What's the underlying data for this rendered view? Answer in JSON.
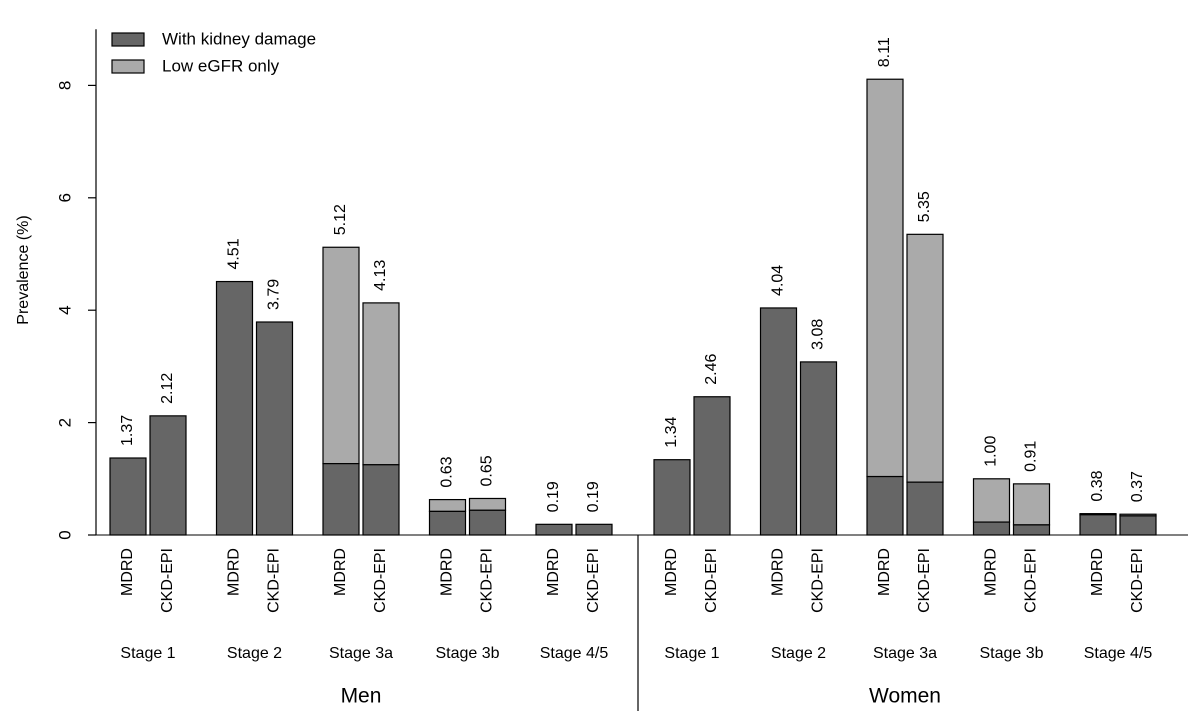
{
  "chart_data": {
    "type": "bar",
    "stacked": true,
    "ylabel": "Prevalence (%)",
    "ylim": [
      0,
      9
    ],
    "yticks": [
      0,
      2,
      4,
      6,
      8
    ],
    "legend": {
      "placement": "top-left",
      "entries": [
        {
          "label": "With kidney damage",
          "color": "#666666"
        },
        {
          "label": "Low eGFR only",
          "color": "#aaaaaa"
        }
      ]
    },
    "groups": [
      {
        "name": "Men",
        "stages": [
          {
            "name": "Stage 1",
            "bars": [
              {
                "method": "MDRD",
                "total": 1.37,
                "kidney_damage": 1.37,
                "total_label": "1.37"
              },
              {
                "method": "CKD-EPI",
                "total": 2.12,
                "kidney_damage": 2.12,
                "total_label": "2.12"
              }
            ]
          },
          {
            "name": "Stage 2",
            "bars": [
              {
                "method": "MDRD",
                "total": 4.51,
                "kidney_damage": 4.51,
                "total_label": "4.51"
              },
              {
                "method": "CKD-EPI",
                "total": 3.79,
                "kidney_damage": 3.79,
                "total_label": "3.79"
              }
            ]
          },
          {
            "name": "Stage 3a",
            "bars": [
              {
                "method": "MDRD",
                "total": 5.12,
                "kidney_damage": 1.27,
                "total_label": "5.12"
              },
              {
                "method": "CKD-EPI",
                "total": 4.13,
                "kidney_damage": 1.25,
                "total_label": "4.13"
              }
            ]
          },
          {
            "name": "Stage 3b",
            "bars": [
              {
                "method": "MDRD",
                "total": 0.63,
                "kidney_damage": 0.42,
                "total_label": "0.63"
              },
              {
                "method": "CKD-EPI",
                "total": 0.65,
                "kidney_damage": 0.44,
                "total_label": "0.65"
              }
            ]
          },
          {
            "name": "Stage 4/5",
            "bars": [
              {
                "method": "MDRD",
                "total": 0.19,
                "kidney_damage": 0.19,
                "total_label": "0.19"
              },
              {
                "method": "CKD-EPI",
                "total": 0.19,
                "kidney_damage": 0.19,
                "total_label": "0.19"
              }
            ]
          }
        ]
      },
      {
        "name": "Women",
        "stages": [
          {
            "name": "Stage 1",
            "bars": [
              {
                "method": "MDRD",
                "total": 1.34,
                "kidney_damage": 1.34,
                "total_label": "1.34"
              },
              {
                "method": "CKD-EPI",
                "total": 2.46,
                "kidney_damage": 2.46,
                "total_label": "2.46"
              }
            ]
          },
          {
            "name": "Stage 2",
            "bars": [
              {
                "method": "MDRD",
                "total": 4.04,
                "kidney_damage": 4.04,
                "total_label": "4.04"
              },
              {
                "method": "CKD-EPI",
                "total": 3.08,
                "kidney_damage": 3.08,
                "total_label": "3.08"
              }
            ]
          },
          {
            "name": "Stage 3a",
            "bars": [
              {
                "method": "MDRD",
                "total": 8.11,
                "kidney_damage": 1.04,
                "total_label": "8.11"
              },
              {
                "method": "CKD-EPI",
                "total": 5.35,
                "kidney_damage": 0.94,
                "total_label": "5.35"
              }
            ]
          },
          {
            "name": "Stage 3b",
            "bars": [
              {
                "method": "MDRD",
                "total": 1.0,
                "kidney_damage": 0.23,
                "total_label": "1.00"
              },
              {
                "method": "CKD-EPI",
                "total": 0.91,
                "kidney_damage": 0.18,
                "total_label": "0.91"
              }
            ]
          },
          {
            "name": "Stage 4/5",
            "bars": [
              {
                "method": "MDRD",
                "total": 0.38,
                "kidney_damage": 0.36,
                "total_label": "0.38"
              },
              {
                "method": "CKD-EPI",
                "total": 0.37,
                "kidney_damage": 0.34,
                "total_label": "0.37"
              }
            ]
          }
        ]
      }
    ]
  }
}
